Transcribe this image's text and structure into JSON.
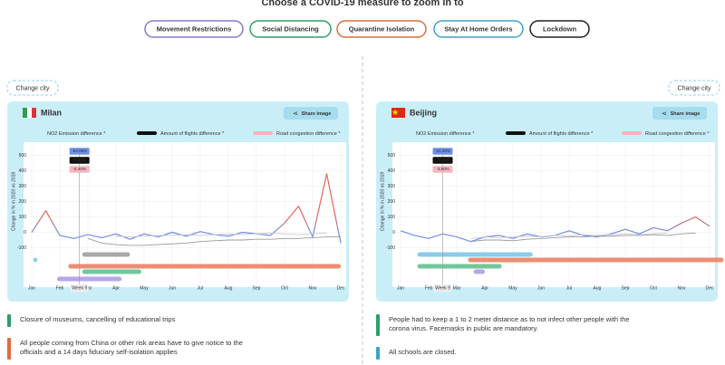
{
  "title": "Choose a COVID-19 measure to zoom in to",
  "measures": [
    {
      "label": "Movement Restrictions",
      "color": "#8a78c9"
    },
    {
      "label": "Social Distancing",
      "color": "#2f9e6a"
    },
    {
      "label": "Quarantine Isolation",
      "color": "#e06c3c"
    },
    {
      "label": "Stay At Home Orders",
      "color": "#3da3c6"
    },
    {
      "label": "Lockdown",
      "color": "#222222"
    }
  ],
  "panels": [
    {
      "change_city": "Change city",
      "city": "Milan",
      "flag": {
        "stripes": [
          "#2e9e4a",
          "#ffffff",
          "#d6363a"
        ]
      },
      "share": "Share image",
      "chart": {
        "type": "line",
        "y_label": "Change in % in 2020 vs 2019",
        "x": [
          0,
          0.5,
          1,
          1.5,
          2,
          2.5,
          3,
          3.5,
          4,
          4.5,
          5,
          5.5,
          6,
          6.5,
          7,
          7.5,
          8,
          8.5,
          9,
          9.5,
          10,
          10.5,
          11
        ],
        "xlim": [
          0,
          11
        ],
        "xticks": [
          {
            "value": 0,
            "label": "Jan"
          },
          {
            "value": 1,
            "label": "Feb"
          },
          {
            "value": 2,
            "label": "Mar"
          },
          {
            "value": 3,
            "label": "Apr"
          },
          {
            "value": 4,
            "label": "May"
          },
          {
            "value": 5,
            "label": "Jun"
          },
          {
            "value": 6,
            "label": "Jul"
          },
          {
            "value": 7,
            "label": "Aug"
          },
          {
            "value": 8,
            "label": "Sep"
          },
          {
            "value": 9,
            "label": "Oct"
          },
          {
            "value": 10,
            "label": "Nov"
          },
          {
            "value": 11,
            "label": "Dec"
          }
        ],
        "ylim": [
          -100,
          500
        ],
        "yticks": [
          -100,
          0,
          100,
          200,
          300,
          400,
          500
        ],
        "grid": true,
        "series": [
          {
            "name": "NO2 Emission difference *",
            "colors": [
              "#e8625a",
              "#6f8fe3"
            ],
            "values": [
              0,
              140,
              -20,
              -40,
              -15,
              -35,
              -10,
              -45,
              -10,
              -30,
              0,
              -25,
              5,
              -15,
              -25,
              0,
              -10,
              -20,
              60,
              170,
              -30,
              380,
              -70
            ]
          },
          {
            "name": "Amount of flights difference *",
            "color": "#9a9a9a",
            "swatch": "#111111",
            "values": [
              null,
              null,
              null,
              null,
              -40,
              -70,
              -80,
              -85,
              -85,
              -80,
              -75,
              -70,
              -60,
              -55,
              -50,
              -50,
              -45,
              -45,
              -40,
              -40,
              -35,
              -30,
              -30
            ]
          },
          {
            "name": "Road congestion difference *",
            "color": "#c9c9d6",
            "swatch": "#f4b5be",
            "values": [
              null,
              null,
              null,
              null,
              null,
              null,
              -25,
              -30,
              -25,
              -20,
              -20,
              -15,
              -20,
              -15,
              -10,
              -15,
              -10,
              -5,
              -10,
              -15,
              -10,
              -5,
              null
            ]
          }
        ],
        "tooltip": {
          "x": 1.7,
          "label": "Week 9",
          "values": [
            "-64.95%",
            "-0.29%",
            "-5.40%"
          ],
          "colors": [
            "#6f8fe3",
            "#111111",
            "#f4b5be"
          ]
        },
        "bars": [
          {
            "color": "#a9a9a9",
            "start": 1.8,
            "end": 3.5
          },
          {
            "color": "#8ccbea",
            "start": 0.05,
            "end": 0.2
          },
          {
            "color": "#ec8e73",
            "start": 1.3,
            "end": 11
          },
          {
            "color": "#72c79a",
            "start": 1.8,
            "end": 3.9
          },
          {
            "color": "#b7a6ea",
            "start": 0.9,
            "end": 3.2
          }
        ]
      },
      "notes": [
        {
          "color": "#2f9e6a",
          "lines": [
            "Closure of museums, cancelling of educational trips"
          ]
        },
        {
          "color": "#e06c3c",
          "lines": [
            "All people coming from China or other risk areas have to give notice to the",
            "officials and a 14 days fiduciary self-isolation applies"
          ]
        }
      ]
    },
    {
      "change_city": "Change city",
      "city": "Beijing",
      "flag": {
        "field": "#de2910",
        "star": "#ffde00"
      },
      "share": "Share image",
      "chart": {
        "type": "line",
        "y_label": "Change in % in 2020 vs 2019",
        "x": [
          0,
          0.5,
          1,
          1.5,
          2,
          2.5,
          3,
          3.5,
          4,
          4.5,
          5,
          5.5,
          6,
          6.5,
          7,
          7.5,
          8,
          8.5,
          9,
          9.5,
          10,
          10.5,
          11
        ],
        "xlim": [
          0,
          11
        ],
        "xticks": [
          {
            "value": 0,
            "label": "Jan"
          },
          {
            "value": 1,
            "label": "Feb"
          },
          {
            "value": 2,
            "label": "Mar"
          },
          {
            "value": 3,
            "label": "Apr"
          },
          {
            "value": 4,
            "label": "May"
          },
          {
            "value": 5,
            "label": "Jun"
          },
          {
            "value": 6,
            "label": "Jul"
          },
          {
            "value": 7,
            "label": "Aug"
          },
          {
            "value": 8,
            "label": "Sep"
          },
          {
            "value": 9,
            "label": "Oct"
          },
          {
            "value": 10,
            "label": "Nov"
          },
          {
            "value": 11,
            "label": "Dec"
          }
        ],
        "ylim": [
          -100,
          500
        ],
        "yticks": [
          -100,
          0,
          100,
          200,
          300,
          400,
          500
        ],
        "grid": true,
        "series": [
          {
            "name": "NO2 Emission difference *",
            "colors": [
              "#e8625a",
              "#6f8fe3"
            ],
            "values": [
              10,
              -20,
              -40,
              -10,
              -30,
              -60,
              -30,
              -20,
              -40,
              -10,
              -30,
              -20,
              10,
              -20,
              -30,
              -10,
              20,
              -10,
              30,
              10,
              60,
              100,
              40
            ]
          },
          {
            "name": "Amount of flights difference *",
            "color": "#9a9a9a",
            "swatch": "#111111",
            "values": [
              null,
              null,
              null,
              null,
              null,
              -60,
              -50,
              -50,
              -55,
              -45,
              -40,
              -35,
              -30,
              -30,
              -25,
              -25,
              -20,
              -20,
              -15,
              -20,
              -10,
              -5,
              null
            ]
          },
          {
            "name": "Road congestion difference *",
            "color": "#c9c9d6",
            "swatch": "#f4b5be",
            "values": [
              null,
              null,
              null,
              null,
              null,
              -40,
              -30,
              -35,
              -30,
              -25,
              -30,
              -20,
              -25,
              -15,
              -20,
              -15,
              -10,
              -15,
              -10,
              -5,
              null,
              null,
              null
            ]
          }
        ],
        "tooltip": {
          "x": 1.5,
          "label": "Week 9",
          "values": [
            "-21.28%",
            "-70.64%",
            "-3.80%"
          ],
          "colors": [
            "#6f8fe3",
            "#111111",
            "#f4b5be"
          ]
        },
        "bars": [
          {
            "color": "#8ccbea",
            "start": 0.6,
            "end": 4.7
          },
          {
            "color": "#ec8e73",
            "start": 2.4,
            "end": 11.5
          },
          {
            "color": "#72c79a",
            "start": 0.6,
            "end": 3.6
          },
          {
            "color": "#b7a6ea",
            "start": 2.6,
            "end": 3.0
          }
        ]
      },
      "notes": [
        {
          "color": "#2f9e6a",
          "lines": [
            "People had to keep a 1 to 2 meter distance as to not infect other people with the",
            "corona virus. Facemasks in public are mandatory."
          ]
        },
        {
          "color": "#3da3c6",
          "lines": [
            "All schools are closed."
          ]
        }
      ]
    }
  ]
}
